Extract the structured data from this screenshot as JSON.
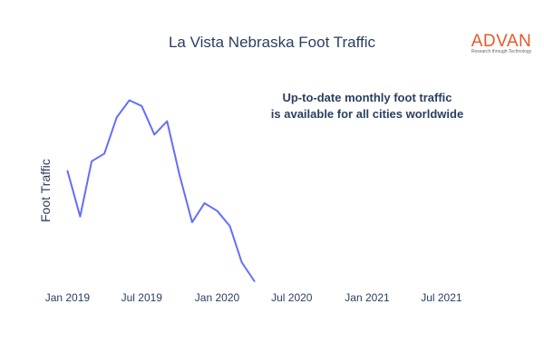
{
  "brand": {
    "name": "ADVAN",
    "tagline": "Research through Technology",
    "color": "#e8572a"
  },
  "chart_data": {
    "type": "line",
    "title": "La Vista Nebraska Foot Traffic",
    "xlabel": "",
    "ylabel": "Foot Traffic",
    "x_ticks": [
      "Jan 2019",
      "Jul 2019",
      "Jan 2020",
      "Jul 2020",
      "Jan 2021",
      "Jul 2021"
    ],
    "x_range": [
      "2018-12-20",
      "2021-09-10"
    ],
    "y_range": [
      0,
      100
    ],
    "y_ticks_shown": false,
    "grid": false,
    "legend": "none",
    "line_color": "#636efa",
    "annotation": "Up-to-date monthly foot traffic\nis available for all cities worldwide",
    "series": [
      {
        "x": [
          "2019-01-01",
          "2019-02-01",
          "2019-03-01",
          "2019-04-01",
          "2019-05-01",
          "2019-06-01",
          "2019-07-01",
          "2019-08-01",
          "2019-09-01",
          "2019-10-01",
          "2019-11-01",
          "2019-12-01",
          "2020-01-01",
          "2020-02-01",
          "2020-03-01",
          "2020-04-01"
        ],
        "y": [
          58,
          34,
          63,
          67,
          86,
          95,
          92,
          77,
          84,
          56,
          31,
          41,
          37,
          29,
          10,
          0
        ]
      }
    ]
  }
}
